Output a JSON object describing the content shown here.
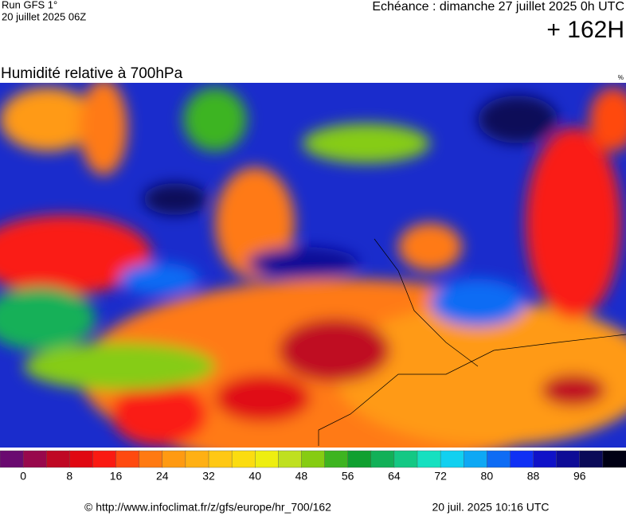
{
  "header": {
    "run": "Run GFS 1°",
    "run_date": "20 juillet 2025 06Z",
    "valid": "Echéance : dimanche 27 juillet 2025 0h UTC",
    "lead": "+ 162H"
  },
  "map": {
    "title": "Humidité relative à 700hPa",
    "unit": "%"
  },
  "colorbar": {
    "colors": [
      "#6a0a70",
      "#98084c",
      "#bf0824",
      "#e00812",
      "#fa1a12",
      "#ff4a10",
      "#ff7a12",
      "#ff9a12",
      "#ffb014",
      "#ffc814",
      "#fbdc10",
      "#eeee10",
      "#bfe020",
      "#86cc12",
      "#3eb420",
      "#10a030",
      "#12b058",
      "#14c884",
      "#16e0c0",
      "#12d0f0",
      "#0ea8f4",
      "#0e6cf4",
      "#1030f4",
      "#1012c8",
      "#0e0c96",
      "#0a0a58",
      "#000014"
    ],
    "ticks": [
      0,
      8,
      16,
      24,
      32,
      40,
      48,
      56,
      64,
      72,
      80,
      88,
      96
    ]
  },
  "footer": {
    "source": "© http://www.infoclimat.fr/z/gfs/europe/hr_700/162",
    "generated": "20 juil. 2025 10:16 UTC"
  }
}
